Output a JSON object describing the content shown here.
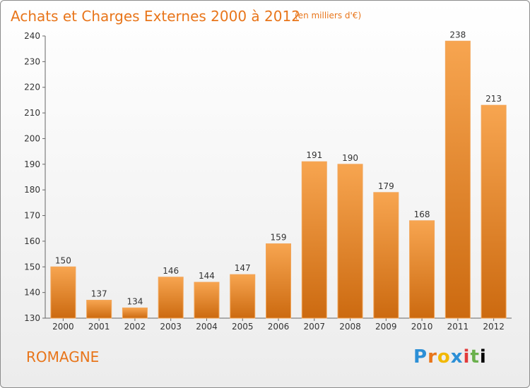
{
  "chart_data": {
    "type": "bar",
    "title": "Achats et Charges Externes 2000 à 2012",
    "subtitle": "(en milliers d'€)",
    "categories": [
      "2000",
      "2001",
      "2002",
      "2003",
      "2004",
      "2005",
      "2006",
      "2007",
      "2008",
      "2009",
      "2010",
      "2011",
      "2012"
    ],
    "values": [
      150,
      137,
      134,
      146,
      144,
      147,
      159,
      191,
      190,
      179,
      168,
      238,
      213
    ],
    "ylim": [
      130,
      240
    ],
    "yticks": [
      130,
      140,
      150,
      160,
      170,
      180,
      190,
      200,
      210,
      220,
      230,
      240
    ],
    "grid": false,
    "bar_color": "#f0963c"
  },
  "footer": {
    "commune": "ROMAGNE",
    "logo": "Proxiti"
  },
  "colors": {
    "accent": "#e8751a"
  }
}
